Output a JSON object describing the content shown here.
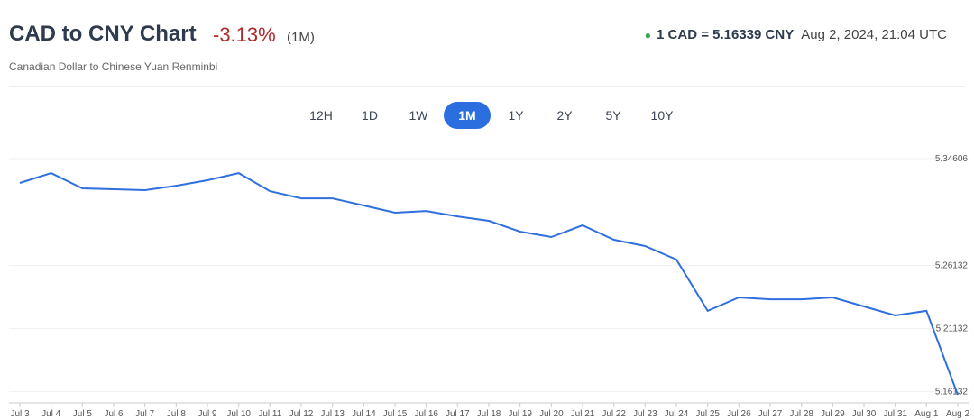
{
  "header": {
    "title": "CAD to CNY Chart",
    "change": "-3.13%",
    "period": "(1M)",
    "subtitle": "Canadian Dollar to Chinese Yuan Renminbi",
    "rate": "1 CAD = 5.16339 CNY",
    "timestamp": "Aug 2, 2024, 21:04 UTC"
  },
  "ranges": {
    "options": [
      "12H",
      "1D",
      "1W",
      "1M",
      "1Y",
      "2Y",
      "5Y",
      "10Y"
    ],
    "selected": 3
  },
  "chart_data": {
    "type": "line",
    "color": "#2f6fde",
    "categories": [
      "Jul 3",
      "Jul 4",
      "Jul 5",
      "Jul 6",
      "Jul 7",
      "Jul 8",
      "Jul 9",
      "Jul 10",
      "Jul 11",
      "Jul 12",
      "Jul 13",
      "Jul 14",
      "Jul 15",
      "Jul 16",
      "Jul 17",
      "Jul 18",
      "Jul 19",
      "Jul 20",
      "Jul 21",
      "Jul 22",
      "Jul 23",
      "Jul 24",
      "Jul 25",
      "Jul 26",
      "Jul 27",
      "Jul 28",
      "Jul 29",
      "Jul 30",
      "Jul 31",
      "Aug 1",
      "Aug 2"
    ],
    "values": [
      5.3268,
      5.3346,
      5.3225,
      5.3218,
      5.3211,
      5.3246,
      5.3289,
      5.3346,
      5.3203,
      5.3146,
      5.3146,
      5.3089,
      5.3032,
      5.3046,
      5.3003,
      5.2968,
      5.2882,
      5.2839,
      5.2932,
      5.2818,
      5.2768,
      5.2661,
      5.2254,
      5.2361,
      5.2346,
      5.2346,
      5.2361,
      5.2289,
      5.2218,
      5.2254,
      5.1589
    ],
    "ylim": [
      5.1525,
      5.3575
    ],
    "yticks": [
      5.16132,
      5.21132,
      5.26132,
      5.34606
    ]
  }
}
